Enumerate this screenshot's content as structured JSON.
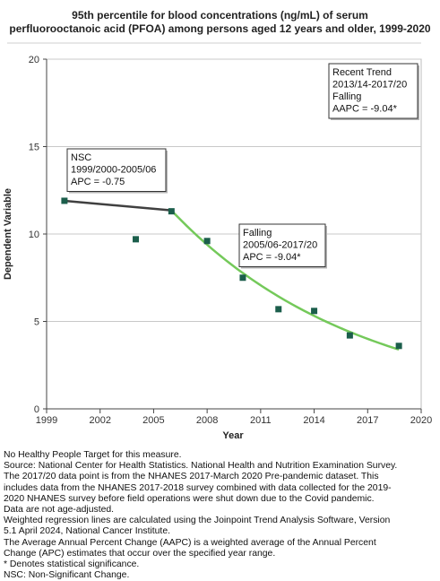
{
  "title_lines": [
    "95th percentile for blood concentrations (ng/mL) of serum",
    "perfluorooctanoic acid (PFOA) among persons aged 12 years and older, 1999-2020"
  ],
  "chart_data": {
    "type": "scatter",
    "xlabel": "Year",
    "ylabel": "Dependent Variable",
    "xlim": [
      1999,
      2020
    ],
    "ylim": [
      0,
      20
    ],
    "xticks": [
      1999,
      2002,
      2005,
      2008,
      2011,
      2014,
      2017,
      2020
    ],
    "yticks": [
      0,
      5,
      10,
      15,
      20
    ],
    "grid": "horizontal",
    "colors": {
      "points": "#1b5e4b",
      "segment1": "#404040",
      "segment2": "#74c95a",
      "gridline": "#c8c8c8",
      "axis": "#444444"
    },
    "series": [
      {
        "values": [
          {
            "x": 2000,
            "y": 11.9
          },
          {
            "x": 2004,
            "y": 9.7
          },
          {
            "x": 2006,
            "y": 11.3
          },
          {
            "x": 2008,
            "y": 9.6
          },
          {
            "x": 2010,
            "y": 7.5
          },
          {
            "x": 2012,
            "y": 5.7
          },
          {
            "x": 2014,
            "y": 5.6
          },
          {
            "x": 2016,
            "y": 4.2
          },
          {
            "x": 2018.75,
            "y": 3.6
          }
        ]
      }
    ],
    "trend_segments": [
      {
        "x0": 2000,
        "x1": 2006,
        "y0": 11.9,
        "y1": 11.35,
        "apc": -0.75,
        "significant": false
      },
      {
        "x0": 2006,
        "x1": 2018.75,
        "y0": 11.35,
        "y1": 3.5,
        "apc": -9.04,
        "significant": true
      }
    ],
    "annotations": [
      {
        "lines": [
          "Recent Trend",
          "2013/14-2017/20",
          "Falling",
          "AAPC = -9.04*"
        ]
      },
      {
        "lines": [
          "NSC",
          "1999/2000-2005/06",
          "APC = -0.75"
        ]
      },
      {
        "lines": [
          "Falling",
          "2005/06-2017/20",
          "APC = -9.04*"
        ]
      }
    ]
  },
  "footnotes": [
    "No Healthy People Target for this measure.",
    "Source: National Center for Health Statistics. National Health and Nutrition Examination Survey.",
    "The 2017/20 data point is from the NHANES 2017-March 2020 Pre-pandemic dataset. This",
    "includes data from the NHANES 2017-2018 survey combined with data collected for the 2019-",
    "2020 NHANES survey before field operations were shut down due to the Covid pandemic.",
    "Data are not age-adjusted.",
    "Weighted regression lines are calculated using the Joinpoint Trend Analysis Software, Version",
    "5.1 April 2024, National Cancer Institute.",
    "The Average Annual Percent Change (AAPC) is a weighted average of the Annual Percent",
    "Change (APC) estimates that occur over the specified year range.",
    "* Denotes statistical significance.",
    "NSC: Non-Significant Change."
  ]
}
